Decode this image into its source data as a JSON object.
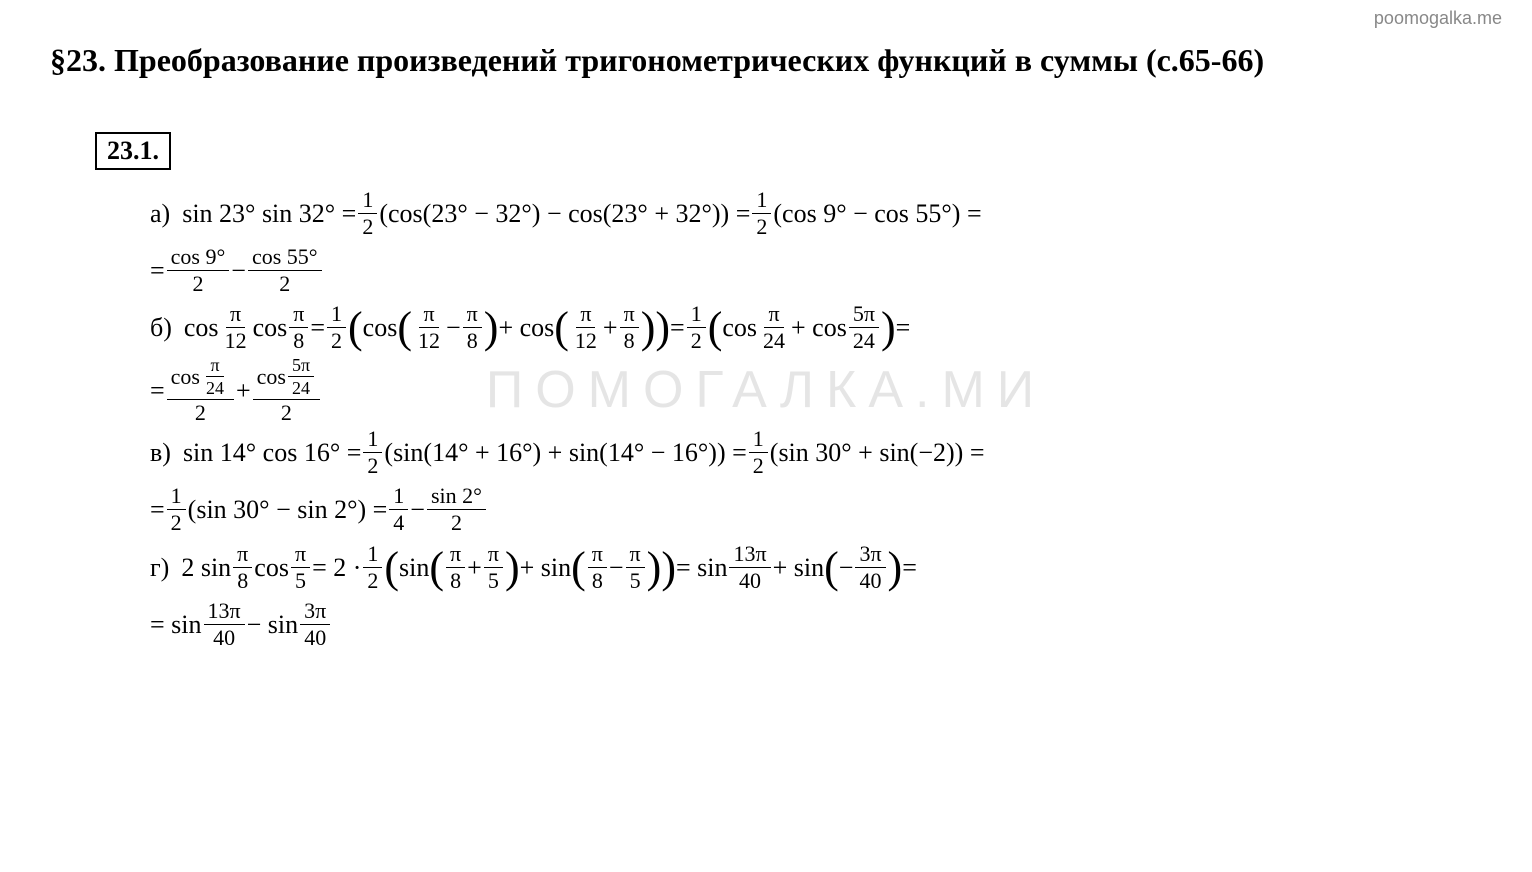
{
  "watermark_top": "poomogalka.me",
  "watermark_center": "ПОМОГАЛКА.МИ",
  "section_heading": "§23. Преобразование произведений тригонометрических функций в суммы (с.65-66)",
  "problem_label": "23.1.",
  "items": {
    "a": {
      "label": "а)",
      "line1_part1": "sin 23° sin 32° = ",
      "line1_frac1_num": "1",
      "line1_frac1_den": "2",
      "line1_part2": "(cos(23° − 32°) − cos(23° + 32°)) = ",
      "line1_frac2_num": "1",
      "line1_frac2_den": "2",
      "line1_part3": "(cos 9° − cos 55°) =",
      "line2_eq": "= ",
      "line2_frac1_num": "cos 9°",
      "line2_frac1_den": "2",
      "line2_minus": " − ",
      "line2_frac2_num": "cos 55°",
      "line2_frac2_den": "2"
    },
    "b": {
      "label": "б)",
      "line1_part1": "cos",
      "line1_fracA_num": "π",
      "line1_fracA_den": "12",
      "line1_cos2": "cos",
      "line1_fracB_num": "π",
      "line1_fracB_den": "8",
      "line1_eq1": " = ",
      "line1_half_num": "1",
      "line1_half_den": "2",
      "line1_cos3": "cos",
      "line1_fracC_num": "π",
      "line1_fracC_den": "12",
      "line1_minus": "−",
      "line1_fracD_num": "π",
      "line1_fracD_den": "8",
      "line1_plus": " + cos",
      "line1_fracE_num": "π",
      "line1_fracE_den": "12",
      "line1_plus2": "+",
      "line1_fracF_num": "π",
      "line1_fracF_den": "8",
      "line1_eq2": " = ",
      "line1_half2_num": "1",
      "line1_half2_den": "2",
      "line1_cos4": "cos",
      "line1_fracG_num": "π",
      "line1_fracG_den": "24",
      "line1_plus3": " + cos",
      "line1_fracH_num": "5π",
      "line1_fracH_den": "24",
      "line1_eq3": " =",
      "line2_eq": "= ",
      "line2_frac1_num_top": "cos",
      "line2_frac1_inner_num": "π",
      "line2_frac1_inner_den": "24",
      "line2_frac1_den": "2",
      "line2_plus": " + ",
      "line2_frac2_num_top": "cos",
      "line2_frac2_inner_num": "5π",
      "line2_frac2_inner_den": "24",
      "line2_frac2_den": "2"
    },
    "v": {
      "label": "в)",
      "line1_part1": "sin 14° cos 16° = ",
      "line1_frac1_num": "1",
      "line1_frac1_den": "2",
      "line1_part2": "(sin(14° + 16°) + sin(14° − 16°)) = ",
      "line1_frac2_num": "1",
      "line1_frac2_den": "2",
      "line1_part3": "(sin 30° + sin(−2)) =",
      "line2_eq": "= ",
      "line2_frac1_num": "1",
      "line2_frac1_den": "2",
      "line2_part1": "(sin 30° − sin 2°) = ",
      "line2_frac2_num": "1",
      "line2_frac2_den": "4",
      "line2_minus": " − ",
      "line2_frac3_num": "sin 2°",
      "line2_frac3_den": "2"
    },
    "g": {
      "label": "г)",
      "line1_part1": "2 sin",
      "line1_fracA_num": "π",
      "line1_fracA_den": "8",
      "line1_cos": "cos",
      "line1_fracB_num": "π",
      "line1_fracB_den": "5",
      "line1_eq1": " = 2 · ",
      "line1_half_num": "1",
      "line1_half_den": "2",
      "line1_sin2": "sin",
      "line1_fracC_num": "π",
      "line1_fracC_den": "8",
      "line1_plus": " + ",
      "line1_fracD_num": "π",
      "line1_fracD_den": "5",
      "line1_plus2": " + sin",
      "line1_fracE_num": "π",
      "line1_fracE_den": "8",
      "line1_minus": " − ",
      "line1_fracF_num": "π",
      "line1_fracF_den": "5",
      "line1_eq2": " = sin",
      "line1_fracG_num": "13π",
      "line1_fracG_den": "40",
      "line1_plus3": " + sin",
      "line1_neg": "−",
      "line1_fracH_num": "3π",
      "line1_fracH_den": "40",
      "line1_eq3": " =",
      "line2_eq": "= sin",
      "line2_frac1_num": "13π",
      "line2_frac1_den": "40",
      "line2_minus": " − sin",
      "line2_frac2_num": "3π",
      "line2_frac2_den": "40"
    }
  },
  "colors": {
    "text": "#000000",
    "background": "#ffffff",
    "watermark": "#b4b4b4"
  }
}
